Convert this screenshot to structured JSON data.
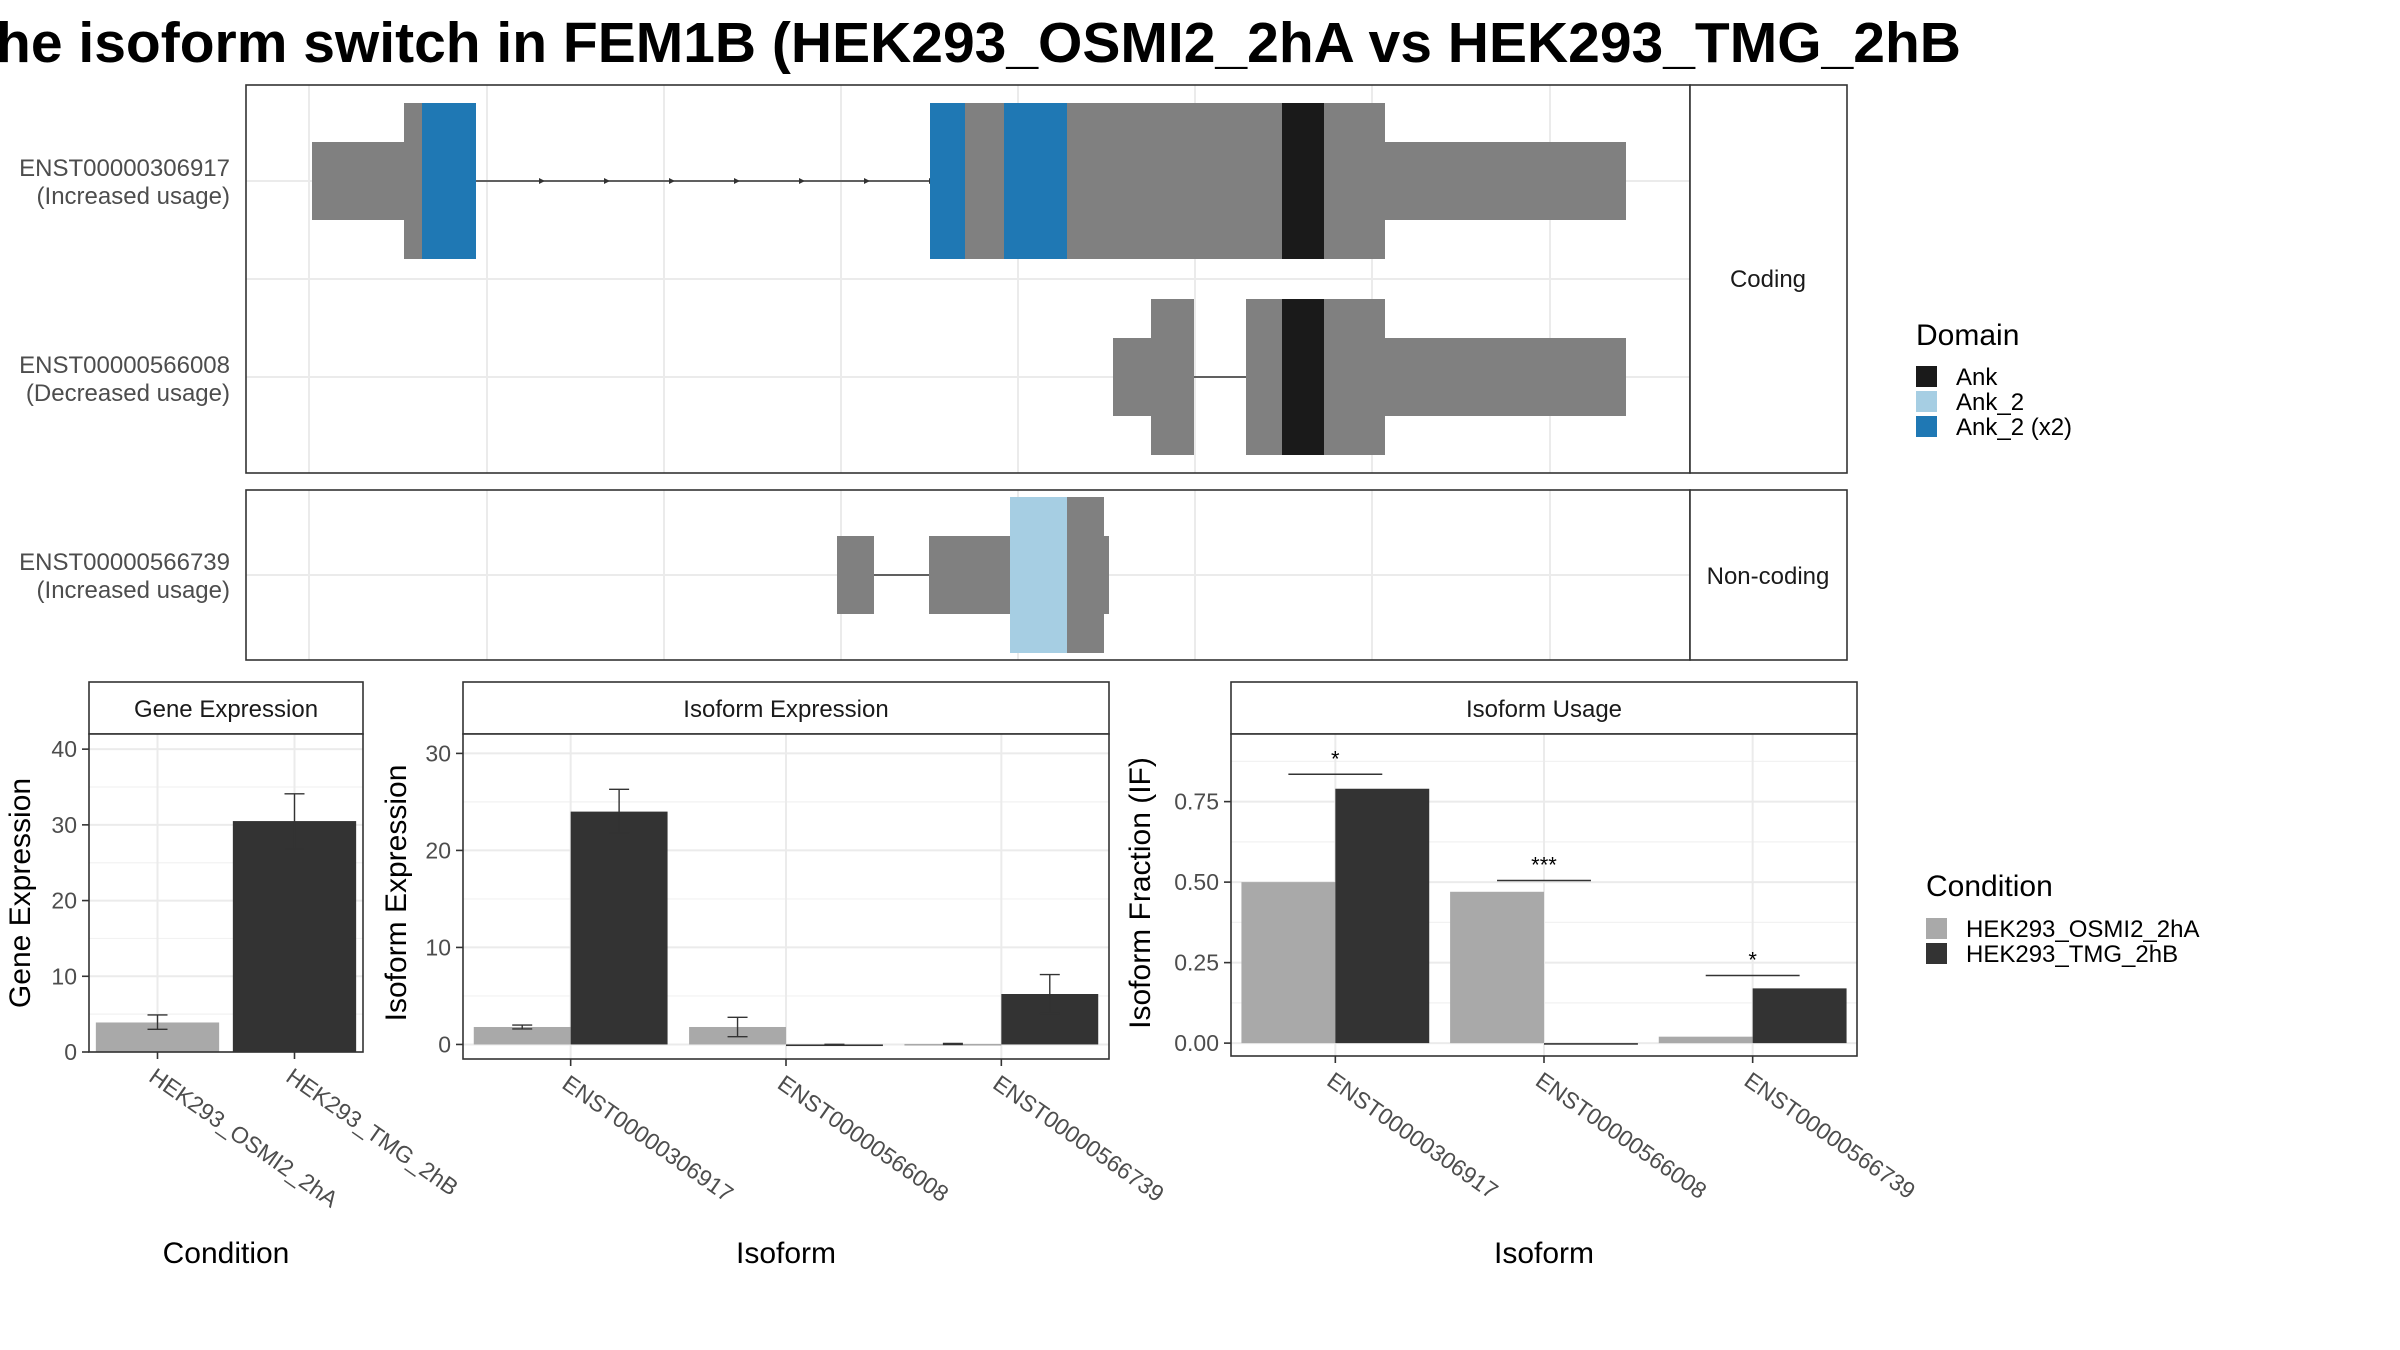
{
  "title": "he isoform switch in FEM1B (HEK293_OSMI2_2hA vs HEK293_TMG_2hB",
  "colors": {
    "exon": "#808080",
    "Ank": "#1a1a1a",
    "Ank_2": "#a6cee3",
    "Ank_2 (x2)": "#1f78b4",
    "HEK293_OSMI2_2hA": "#a9a9a9",
    "HEK293_TMG_2hB": "#333333"
  },
  "structure": {
    "facets": [
      {
        "strip": "Coding",
        "transcripts": [
          {
            "id": "ENST00000306917",
            "usage": "(Increased usage)"
          },
          {
            "id": "ENST00000566008",
            "usage": "(Decreased usage)"
          }
        ]
      },
      {
        "strip": "Non-coding",
        "transcripts": [
          {
            "id": "ENST00000566739",
            "usage": "(Increased usage)"
          }
        ]
      }
    ]
  },
  "legend_domain": {
    "title": "Domain",
    "items": [
      "Ank",
      "Ank_2",
      "Ank_2 (x2)"
    ]
  },
  "legend_condition": {
    "title": "Condition",
    "items": [
      "HEK293_OSMI2_2hA",
      "HEK293_TMG_2hB"
    ]
  },
  "chart_data": [
    {
      "type": "bar",
      "title": "Gene Expression",
      "xlabel": "Condition",
      "ylabel": "Gene Expression",
      "categories": [
        "HEK293_OSMI2_2hA",
        "HEK293_TMG_2hB"
      ],
      "values": [
        3.9,
        30.5
      ],
      "error": [
        [
          3.0,
          4.9
        ],
        [
          26.8,
          34.1
        ]
      ],
      "ylim": [
        0,
        42
      ],
      "yticks": [
        0,
        10,
        20,
        30,
        40
      ],
      "grid": true
    },
    {
      "type": "bar",
      "title": "Isoform Expression",
      "xlabel": "Isoform",
      "ylabel": "Isoform Expression",
      "categories": [
        "ENST00000306917",
        "ENST00000566008",
        "ENST00000566739"
      ],
      "series": [
        {
          "name": "HEK293_OSMI2_2hA",
          "values": [
            1.8,
            1.8,
            0.05
          ],
          "error": [
            [
              1.6,
              2.0
            ],
            [
              0.8,
              2.8
            ],
            [
              0.0,
              0.1
            ]
          ]
        },
        {
          "name": "HEK293_TMG_2hB",
          "values": [
            24.0,
            0.0,
            5.2
          ],
          "error": [
            [
              21.8,
              26.3
            ],
            [
              0.0,
              0.0
            ],
            [
              3.2,
              7.2
            ]
          ]
        }
      ],
      "ylim": [
        -1.5,
        32
      ],
      "yticks": [
        0,
        10,
        20,
        30
      ],
      "grid": true
    },
    {
      "type": "bar",
      "title": "Isoform Usage",
      "xlabel": "Isoform",
      "ylabel": "Isoform Fraction (IF)",
      "categories": [
        "ENST00000306917",
        "ENST00000566008",
        "ENST00000566739"
      ],
      "series": [
        {
          "name": "HEK293_OSMI2_2hA",
          "values": [
            0.5,
            0.47,
            0.02
          ]
        },
        {
          "name": "HEK293_TMG_2hB",
          "values": [
            0.79,
            0.0,
            0.17
          ]
        }
      ],
      "significance": [
        "*",
        "***",
        "*"
      ],
      "significance_y": [
        0.835,
        0.505,
        0.21
      ],
      "ylim": [
        -0.04,
        0.96
      ],
      "yticks": [
        0.0,
        0.25,
        0.5,
        0.75
      ],
      "ytick_labels": [
        "0.00",
        "0.25",
        "0.50",
        "0.75"
      ],
      "grid": true
    }
  ]
}
